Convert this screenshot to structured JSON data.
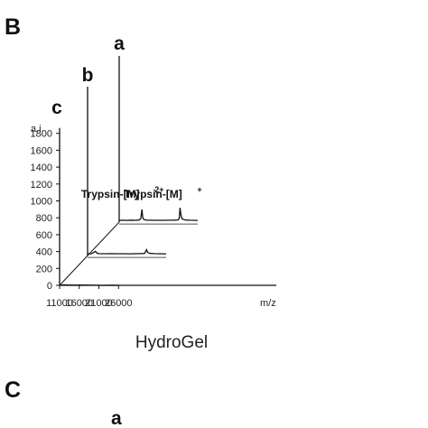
{
  "panel_labels": {
    "top": "B",
    "bottom": "C"
  },
  "caption": "HydroGel",
  "bottom_trace_label": "a",
  "chart_data": {
    "type": "line",
    "title": "",
    "subtitle": "",
    "xlabel": "m/z",
    "ylabel": "a.i.",
    "xlim": [
      11000,
      31000
    ],
    "ylim": [
      0,
      1800
    ],
    "x_ticks": [
      11000,
      16000,
      21000,
      26000
    ],
    "y_ticks": [
      0,
      200,
      400,
      600,
      800,
      1000,
      1200,
      1400,
      1600,
      1800
    ],
    "grid": false,
    "legend": "none",
    "layout_style": "3d-stacked-waterfall",
    "series": [
      {
        "name": "a",
        "baseline": 20,
        "points": [
          [
            11000,
            20
          ],
          [
            12000,
            22
          ],
          [
            13000,
            20
          ],
          [
            14000,
            23
          ],
          [
            15000,
            21
          ],
          [
            16000,
            25
          ],
          [
            16500,
            40
          ],
          [
            16800,
            150
          ],
          [
            17000,
            55
          ],
          [
            17300,
            30
          ],
          [
            18000,
            24
          ],
          [
            19000,
            22
          ],
          [
            20000,
            21
          ],
          [
            22000,
            21
          ],
          [
            24000,
            22
          ],
          [
            25000,
            23
          ],
          [
            26000,
            26
          ],
          [
            26300,
            50
          ],
          [
            26500,
            170
          ],
          [
            26700,
            90
          ],
          [
            27000,
            40
          ],
          [
            27500,
            30
          ],
          [
            28000,
            25
          ],
          [
            29000,
            22
          ],
          [
            31000,
            20
          ]
        ]
      },
      {
        "name": "b",
        "baseline": 20,
        "points": [
          [
            11000,
            20
          ],
          [
            12000,
            21
          ],
          [
            13000,
            50
          ],
          [
            13500,
            25
          ],
          [
            14000,
            22
          ],
          [
            15000,
            21
          ],
          [
            16000,
            21
          ],
          [
            17000,
            22
          ],
          [
            18000,
            21
          ],
          [
            20000,
            21
          ],
          [
            22000,
            20
          ],
          [
            24000,
            22
          ],
          [
            25500,
            25
          ],
          [
            26000,
            70
          ],
          [
            26300,
            35
          ],
          [
            27000,
            25
          ],
          [
            28000,
            22
          ],
          [
            29000,
            21
          ],
          [
            31000,
            20
          ]
        ]
      },
      {
        "name": "c",
        "baseline": 0,
        "points": [
          [
            11000,
            0
          ],
          [
            12000,
            6
          ],
          [
            13000,
            3
          ],
          [
            14000,
            4
          ],
          [
            15000,
            2
          ],
          [
            16000,
            3
          ],
          [
            18000,
            2
          ],
          [
            20000,
            1
          ],
          [
            22000,
            0
          ],
          [
            24000,
            1
          ],
          [
            26000,
            0
          ]
        ]
      }
    ],
    "annotations": [
      {
        "text": "Trypsin-[M]",
        "superscript": "2+",
        "series": "a",
        "x": 16800
      },
      {
        "text": "Trypsin-[M]",
        "superscript": "+",
        "series": "a",
        "x": 26500
      }
    ]
  }
}
